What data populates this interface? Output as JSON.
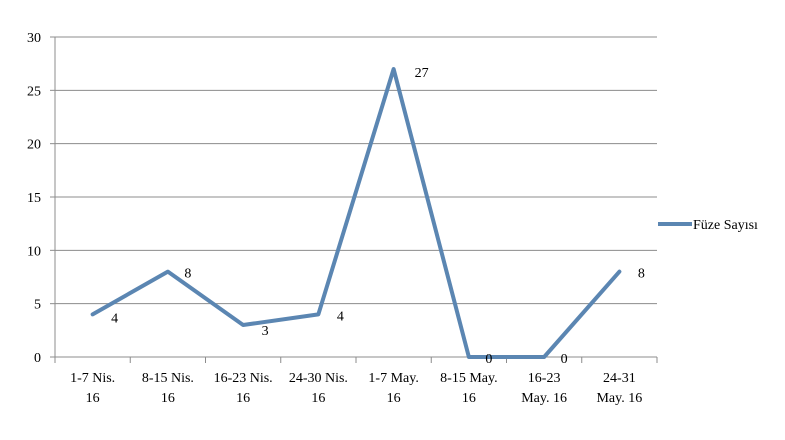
{
  "chart_data": {
    "type": "line",
    "categories": [
      [
        "1-7 Nis.",
        "16"
      ],
      [
        "8-15 Nis.",
        "16"
      ],
      [
        "16-23 Nis.",
        "16"
      ],
      [
        "24-30 Nis.",
        "16"
      ],
      [
        "1-7 May.",
        "16"
      ],
      [
        "8-15 May.",
        "16"
      ],
      [
        "16-23",
        "May. 16"
      ],
      [
        "24-31",
        "May. 16"
      ]
    ],
    "series": [
      {
        "name": "Füze Sayısı",
        "values": [
          4,
          8,
          3,
          4,
          27,
          0,
          0,
          8
        ],
        "color": "#5b86b2"
      }
    ],
    "ylim": [
      0,
      30
    ],
    "yticks": [
      0,
      5,
      10,
      15,
      20,
      25,
      30
    ],
    "grid": true,
    "legend": "right",
    "data_labels": true
  }
}
